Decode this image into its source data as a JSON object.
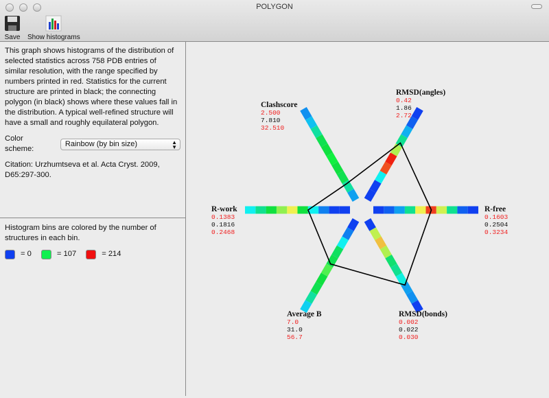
{
  "window": {
    "title": "POLYGON"
  },
  "toolbar": {
    "save_label": "Save",
    "histograms_label": "Show histograms"
  },
  "info": {
    "description": "This graph shows histograms of the distribution of selected statistics across 758 PDB entries of similar resolution, with the range specified by numbers printed in red.  Statistics for the current structure are printed in black; the connecting polygon (in black) shows where these values fall in the distribution. A typical well-refined structure will have a small and roughly equilateral polygon.",
    "color_scheme_label": "Color scheme:",
    "color_scheme_value": "Rainbow (by bin size)",
    "citation": "Citation: Urzhumtseva et al. Acta Cryst. 2009, D65:297-300."
  },
  "legend": {
    "text": "Histogram bins are colored by the number of structures in each bin.",
    "items": [
      {
        "color": "#1040f0",
        "label": "= 0"
      },
      {
        "color": "#10f050",
        "label": "= 107"
      },
      {
        "color": "#f01010",
        "label": "= 214"
      }
    ]
  },
  "chart_data": {
    "type": "polygon-histogram",
    "axes": [
      {
        "name": "R-free",
        "min": "0.1603",
        "current": "0.2504",
        "max": "0.3234",
        "bins": [
          "#1040f0",
          "#1060f0",
          "#10a0f0",
          "#10e090",
          "#f0f050",
          "#f04020",
          "#d0f050",
          "#10e090",
          "#1060f0",
          "#1040f0"
        ]
      },
      {
        "name": "RMSD(angles)",
        "min": "0.42",
        "current": "1.86",
        "max": "2.72",
        "bins": [
          "#1040f0",
          "#1040f0",
          "#10f0f0",
          "#f05020",
          "#f02010",
          "#b0f050",
          "#10e090",
          "#10b0f0",
          "#1060f0",
          "#1040f0"
        ]
      },
      {
        "name": "Clashscore",
        "min": "2.500",
        "current": "7.810",
        "max": "32.510",
        "bins": [
          "#10a0f0",
          "#10e0a0",
          "#10e050",
          "#10e040",
          "#10f040",
          "#10e040",
          "#10e050",
          "#10e0a0",
          "#10c0f0",
          "#1090f0"
        ]
      },
      {
        "name": "R-work",
        "min": "0.1383",
        "current": "0.1816",
        "max": "0.2468",
        "bins": [
          "#1040f0",
          "#1040f0",
          "#1080f0",
          "#10f0f0",
          "#10e040",
          "#f0f050",
          "#90f050",
          "#10e040",
          "#10e090",
          "#10f0f0"
        ]
      },
      {
        "name": "Average B",
        "min": "7.0",
        "current": "31.0",
        "max": "56.7",
        "bins": [
          "#1040f0",
          "#1080f0",
          "#10f0f0",
          "#10e060",
          "#10e050",
          "#50f050",
          "#10e040",
          "#10e050",
          "#10e0a0",
          "#10d0f0"
        ]
      },
      {
        "name": "RMSD(bonds)",
        "min": "0.002",
        "current": "0.022",
        "max": "0.030",
        "bins": [
          "#1040f0",
          "#c0f050",
          "#f0c040",
          "#b0f050",
          "#10e070",
          "#10e090",
          "#10f0e0",
          "#10a0f0",
          "#1090f0",
          "#1040f0"
        ]
      }
    ]
  }
}
